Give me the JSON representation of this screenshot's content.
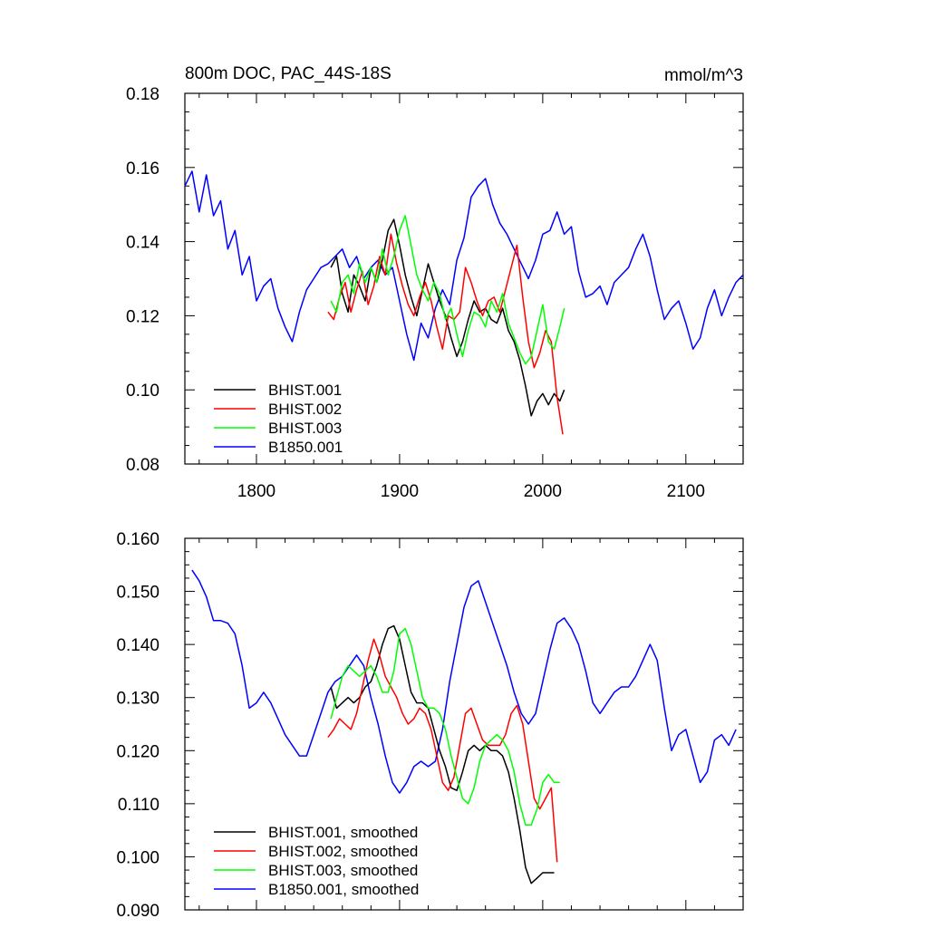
{
  "chart_data": [
    {
      "type": "line",
      "title": "800m DOC, PAC_44S-18S",
      "units": "mmol/m^3",
      "xlim": [
        1750,
        2140
      ],
      "ylim": [
        0.08,
        0.18
      ],
      "x_ticks": [
        1800,
        1900,
        2000,
        2100
      ],
      "x_tick_labels": [
        "1800",
        "1900",
        "2000",
        "2100"
      ],
      "y_ticks": [
        0.08,
        0.1,
        0.12,
        0.14,
        0.16,
        0.18
      ],
      "y_tick_labels": [
        "0.08",
        "0.10",
        "0.12",
        "0.14",
        "0.16",
        "0.18"
      ],
      "legend_position": "bottom-left",
      "series": [
        {
          "name": "BHIST.001",
          "color": "#000000",
          "x": [
            1852,
            1856,
            1860,
            1864,
            1868,
            1872,
            1876,
            1880,
            1884,
            1888,
            1892,
            1896,
            1900,
            1904,
            1908,
            1912,
            1916,
            1920,
            1924,
            1928,
            1932,
            1936,
            1940,
            1944,
            1948,
            1952,
            1956,
            1960,
            1964,
            1968,
            1972,
            1976,
            1980,
            1984,
            1988,
            1992,
            1996,
            2000,
            2004,
            2008,
            2012,
            2015
          ],
          "y": [
            0.133,
            0.136,
            0.126,
            0.121,
            0.131,
            0.128,
            0.124,
            0.133,
            0.129,
            0.135,
            0.143,
            0.146,
            0.139,
            0.131,
            0.125,
            0.12,
            0.127,
            0.134,
            0.129,
            0.124,
            0.12,
            0.114,
            0.109,
            0.113,
            0.119,
            0.124,
            0.121,
            0.122,
            0.119,
            0.118,
            0.122,
            0.116,
            0.113,
            0.108,
            0.101,
            0.093,
            0.097,
            0.099,
            0.096,
            0.099,
            0.097,
            0.1
          ]
        },
        {
          "name": "BHIST.002",
          "color": "#ff0000",
          "x": [
            1850,
            1854,
            1858,
            1862,
            1866,
            1870,
            1874,
            1878,
            1882,
            1886,
            1890,
            1894,
            1898,
            1902,
            1906,
            1910,
            1914,
            1918,
            1922,
            1926,
            1930,
            1934,
            1938,
            1942,
            1946,
            1950,
            1954,
            1958,
            1962,
            1966,
            1970,
            1974,
            1978,
            1982,
            1986,
            1990,
            1994,
            1998,
            2002,
            2006,
            2010,
            2014
          ],
          "y": [
            0.121,
            0.119,
            0.125,
            0.129,
            0.121,
            0.127,
            0.132,
            0.123,
            0.128,
            0.136,
            0.131,
            0.142,
            0.134,
            0.128,
            0.123,
            0.12,
            0.125,
            0.129,
            0.124,
            0.117,
            0.111,
            0.12,
            0.119,
            0.121,
            0.133,
            0.129,
            0.124,
            0.12,
            0.124,
            0.125,
            0.121,
            0.127,
            0.133,
            0.139,
            0.125,
            0.113,
            0.106,
            0.11,
            0.116,
            0.113,
            0.098,
            0.088
          ]
        },
        {
          "name": "BHIST.003",
          "color": "#00ff00",
          "x": [
            1852,
            1856,
            1860,
            1864,
            1868,
            1872,
            1876,
            1880,
            1884,
            1888,
            1892,
            1896,
            1900,
            1904,
            1908,
            1912,
            1916,
            1920,
            1924,
            1928,
            1932,
            1936,
            1940,
            1944,
            1948,
            1952,
            1956,
            1960,
            1964,
            1968,
            1972,
            1976,
            1980,
            1984,
            1988,
            1992,
            1996,
            2000,
            2004,
            2008,
            2012,
            2015
          ],
          "y": [
            0.124,
            0.121,
            0.129,
            0.131,
            0.126,
            0.134,
            0.129,
            0.133,
            0.129,
            0.138,
            0.131,
            0.136,
            0.143,
            0.147,
            0.139,
            0.131,
            0.127,
            0.124,
            0.129,
            0.126,
            0.119,
            0.122,
            0.115,
            0.109,
            0.116,
            0.121,
            0.12,
            0.117,
            0.124,
            0.121,
            0.126,
            0.118,
            0.114,
            0.11,
            0.107,
            0.109,
            0.116,
            0.123,
            0.113,
            0.111,
            0.117,
            0.122
          ]
        },
        {
          "name": "B1850.001",
          "color": "#0000ff",
          "x": [
            1750,
            1755,
            1760,
            1765,
            1770,
            1775,
            1780,
            1785,
            1790,
            1795,
            1800,
            1805,
            1810,
            1815,
            1820,
            1825,
            1830,
            1835,
            1840,
            1845,
            1850,
            1855,
            1860,
            1865,
            1870,
            1875,
            1880,
            1885,
            1890,
            1895,
            1900,
            1905,
            1910,
            1915,
            1920,
            1925,
            1930,
            1935,
            1940,
            1945,
            1950,
            1955,
            1960,
            1965,
            1970,
            1975,
            1980,
            1985,
            1990,
            1995,
            2000,
            2005,
            2010,
            2015,
            2020,
            2025,
            2030,
            2035,
            2040,
            2045,
            2050,
            2055,
            2060,
            2065,
            2070,
            2075,
            2080,
            2085,
            2090,
            2095,
            2100,
            2105,
            2110,
            2115,
            2120,
            2125,
            2130,
            2135,
            2140
          ],
          "y": [
            0.155,
            0.159,
            0.148,
            0.158,
            0.147,
            0.151,
            0.138,
            0.143,
            0.131,
            0.136,
            0.124,
            0.128,
            0.13,
            0.122,
            0.117,
            0.113,
            0.121,
            0.127,
            0.13,
            0.133,
            0.134,
            0.136,
            0.138,
            0.133,
            0.136,
            0.13,
            0.133,
            0.135,
            0.131,
            0.133,
            0.124,
            0.115,
            0.108,
            0.118,
            0.114,
            0.122,
            0.127,
            0.123,
            0.135,
            0.141,
            0.152,
            0.155,
            0.157,
            0.15,
            0.145,
            0.142,
            0.138,
            0.134,
            0.13,
            0.135,
            0.142,
            0.143,
            0.148,
            0.142,
            0.144,
            0.132,
            0.125,
            0.126,
            0.128,
            0.123,
            0.129,
            0.131,
            0.133,
            0.138,
            0.142,
            0.136,
            0.127,
            0.119,
            0.122,
            0.124,
            0.118,
            0.111,
            0.114,
            0.122,
            0.127,
            0.12,
            0.125,
            0.129,
            0.131
          ]
        }
      ],
      "legend": [
        "BHIST.001",
        "BHIST.002",
        "BHIST.003",
        "B1850.001"
      ]
    },
    {
      "type": "line",
      "title": "",
      "xlim": [
        1750,
        2140
      ],
      "ylim": [
        0.09,
        0.16
      ],
      "x_ticks": [
        1800,
        1900,
        2000,
        2100
      ],
      "y_ticks": [
        0.09,
        0.1,
        0.11,
        0.12,
        0.13,
        0.14,
        0.15,
        0.16
      ],
      "y_tick_labels": [
        "0.090",
        "0.100",
        "0.110",
        "0.120",
        "0.130",
        "0.140",
        "0.150",
        "0.160"
      ],
      "legend_position": "bottom-left",
      "series": [
        {
          "name": "BHIST.001, smoothed",
          "color": "#000000",
          "x": [
            1852,
            1856,
            1860,
            1864,
            1868,
            1872,
            1876,
            1880,
            1884,
            1888,
            1892,
            1896,
            1900,
            1904,
            1908,
            1912,
            1916,
            1920,
            1924,
            1928,
            1932,
            1936,
            1940,
            1944,
            1948,
            1952,
            1956,
            1960,
            1964,
            1968,
            1972,
            1976,
            1980,
            1984,
            1988,
            1992,
            1996,
            2000,
            2004,
            2008
          ],
          "y": [
            0.132,
            0.128,
            0.129,
            0.13,
            0.129,
            0.13,
            0.132,
            0.133,
            0.136,
            0.14,
            0.143,
            0.1435,
            0.141,
            0.136,
            0.131,
            0.129,
            0.129,
            0.128,
            0.124,
            0.12,
            0.117,
            0.113,
            0.1125,
            0.116,
            0.12,
            0.121,
            0.12,
            0.121,
            0.12,
            0.12,
            0.119,
            0.116,
            0.111,
            0.105,
            0.098,
            0.095,
            0.096,
            0.097,
            0.097,
            0.097
          ]
        },
        {
          "name": "BHIST.002, smoothed",
          "color": "#ff0000",
          "x": [
            1850,
            1854,
            1858,
            1862,
            1866,
            1870,
            1874,
            1878,
            1882,
            1886,
            1890,
            1894,
            1898,
            1902,
            1906,
            1910,
            1914,
            1918,
            1922,
            1926,
            1930,
            1934,
            1938,
            1942,
            1946,
            1950,
            1954,
            1958,
            1962,
            1966,
            1970,
            1974,
            1978,
            1982,
            1986,
            1990,
            1994,
            1998,
            2002,
            2006,
            2010
          ],
          "y": [
            0.1225,
            0.124,
            0.126,
            0.125,
            0.124,
            0.127,
            0.132,
            0.137,
            0.141,
            0.138,
            0.134,
            0.132,
            0.13,
            0.127,
            0.125,
            0.126,
            0.128,
            0.127,
            0.124,
            0.119,
            0.114,
            0.1125,
            0.115,
            0.121,
            0.127,
            0.128,
            0.125,
            0.122,
            0.121,
            0.121,
            0.121,
            0.123,
            0.127,
            0.1285,
            0.125,
            0.118,
            0.111,
            0.109,
            0.111,
            0.113,
            0.099
          ]
        },
        {
          "name": "BHIST.003, smoothed",
          "color": "#00ff00",
          "x": [
            1852,
            1856,
            1860,
            1864,
            1868,
            1872,
            1876,
            1880,
            1884,
            1888,
            1892,
            1896,
            1900,
            1904,
            1908,
            1912,
            1916,
            1920,
            1924,
            1928,
            1932,
            1936,
            1940,
            1944,
            1948,
            1952,
            1956,
            1960,
            1964,
            1968,
            1972,
            1976,
            1980,
            1984,
            1988,
            1992,
            1996,
            2000,
            2004,
            2008,
            2012
          ],
          "y": [
            0.126,
            0.13,
            0.134,
            0.136,
            0.135,
            0.134,
            0.135,
            0.136,
            0.134,
            0.131,
            0.131,
            0.135,
            0.142,
            0.143,
            0.14,
            0.135,
            0.13,
            0.128,
            0.128,
            0.127,
            0.124,
            0.119,
            0.115,
            0.111,
            0.11,
            0.113,
            0.118,
            0.121,
            0.122,
            0.123,
            0.122,
            0.12,
            0.116,
            0.11,
            0.106,
            0.106,
            0.109,
            0.114,
            0.1155,
            0.114,
            0.114
          ]
        },
        {
          "name": "B1850.001, smoothed",
          "color": "#0000ff",
          "x": [
            1755,
            1760,
            1765,
            1770,
            1775,
            1780,
            1785,
            1790,
            1795,
            1800,
            1805,
            1810,
            1815,
            1820,
            1825,
            1830,
            1835,
            1840,
            1845,
            1850,
            1855,
            1860,
            1865,
            1870,
            1875,
            1880,
            1885,
            1890,
            1895,
            1900,
            1905,
            1910,
            1915,
            1920,
            1925,
            1930,
            1935,
            1940,
            1945,
            1950,
            1955,
            1960,
            1965,
            1970,
            1975,
            1980,
            1985,
            1990,
            1995,
            2000,
            2005,
            2010,
            2015,
            2020,
            2025,
            2030,
            2035,
            2040,
            2045,
            2050,
            2055,
            2060,
            2065,
            2070,
            2075,
            2080,
            2085,
            2090,
            2095,
            2100,
            2105,
            2110,
            2115,
            2120,
            2125,
            2130,
            2135
          ],
          "y": [
            0.154,
            0.152,
            0.149,
            0.1445,
            0.1445,
            0.144,
            0.142,
            0.136,
            0.128,
            0.129,
            0.131,
            0.129,
            0.126,
            0.123,
            0.121,
            0.119,
            0.119,
            0.123,
            0.127,
            0.131,
            0.133,
            0.134,
            0.136,
            0.138,
            0.136,
            0.13,
            0.125,
            0.119,
            0.114,
            0.112,
            0.114,
            0.117,
            0.118,
            0.117,
            0.118,
            0.124,
            0.133,
            0.14,
            0.147,
            0.151,
            0.152,
            0.148,
            0.144,
            0.14,
            0.136,
            0.131,
            0.127,
            0.125,
            0.127,
            0.133,
            0.139,
            0.144,
            0.145,
            0.143,
            0.14,
            0.135,
            0.129,
            0.127,
            0.129,
            0.131,
            0.132,
            0.132,
            0.134,
            0.137,
            0.14,
            0.137,
            0.128,
            0.12,
            0.123,
            0.124,
            0.119,
            0.114,
            0.116,
            0.122,
            0.123,
            0.121,
            0.124
          ]
        }
      ],
      "legend": [
        "BHIST.001, smoothed",
        "BHIST.002, smoothed",
        "BHIST.003, smoothed",
        "B1850.001, smoothed"
      ]
    }
  ]
}
